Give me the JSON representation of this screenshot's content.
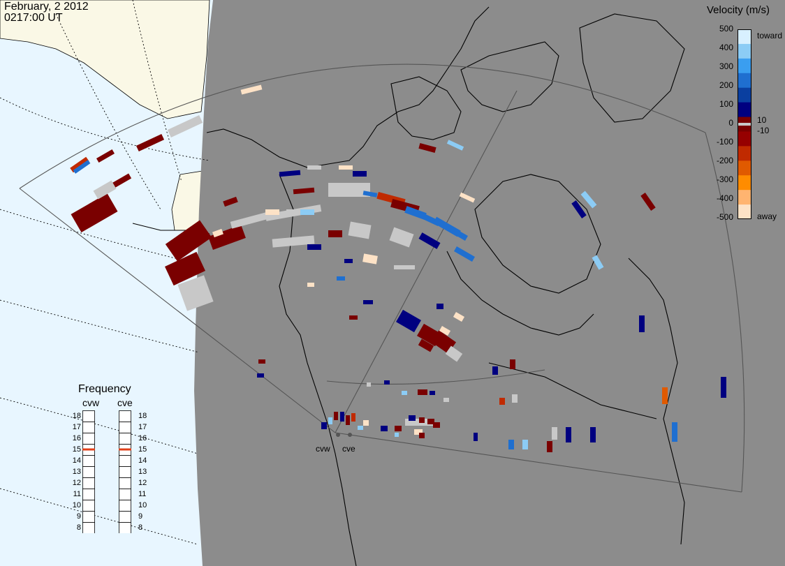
{
  "header": {
    "date": "February, 2 2012",
    "time": "0217:00 UT"
  },
  "colorbar": {
    "title": "Velocity (m/s)",
    "ticks": [
      "500",
      "400",
      "300",
      "200",
      "100",
      "0",
      "-100",
      "-200",
      "-300",
      "-400",
      "-500"
    ],
    "small_pos": "10",
    "small_neg": "-10",
    "toward_label": "toward",
    "away_label": "away",
    "colors": [
      "#fde2c6",
      "#ffb470",
      "#ff8c00",
      "#e05a00",
      "#c02a00",
      "#960000",
      "#7a0000",
      "#000080",
      "#0a3fa0",
      "#1f6fd0",
      "#3a9ef0",
      "#8cccf5",
      "#d8f0ff"
    ]
  },
  "frequency": {
    "title": "Frequency",
    "radars": [
      "cvw",
      "cve"
    ],
    "ticks": [
      "18",
      "17",
      "16",
      "15",
      "14",
      "13",
      "12",
      "11",
      "10",
      "9",
      "8"
    ],
    "cvw_value": 15,
    "cve_value": 15,
    "marker_color": "#e0401a"
  },
  "sites": [
    "cvw",
    "cve"
  ],
  "map": {
    "land_color": "#8c8c8c",
    "ocean_color": "#e8f6ff",
    "daylight_land_color": "#faf8e6",
    "ground_scatter_color": "#c8c8c8"
  }
}
